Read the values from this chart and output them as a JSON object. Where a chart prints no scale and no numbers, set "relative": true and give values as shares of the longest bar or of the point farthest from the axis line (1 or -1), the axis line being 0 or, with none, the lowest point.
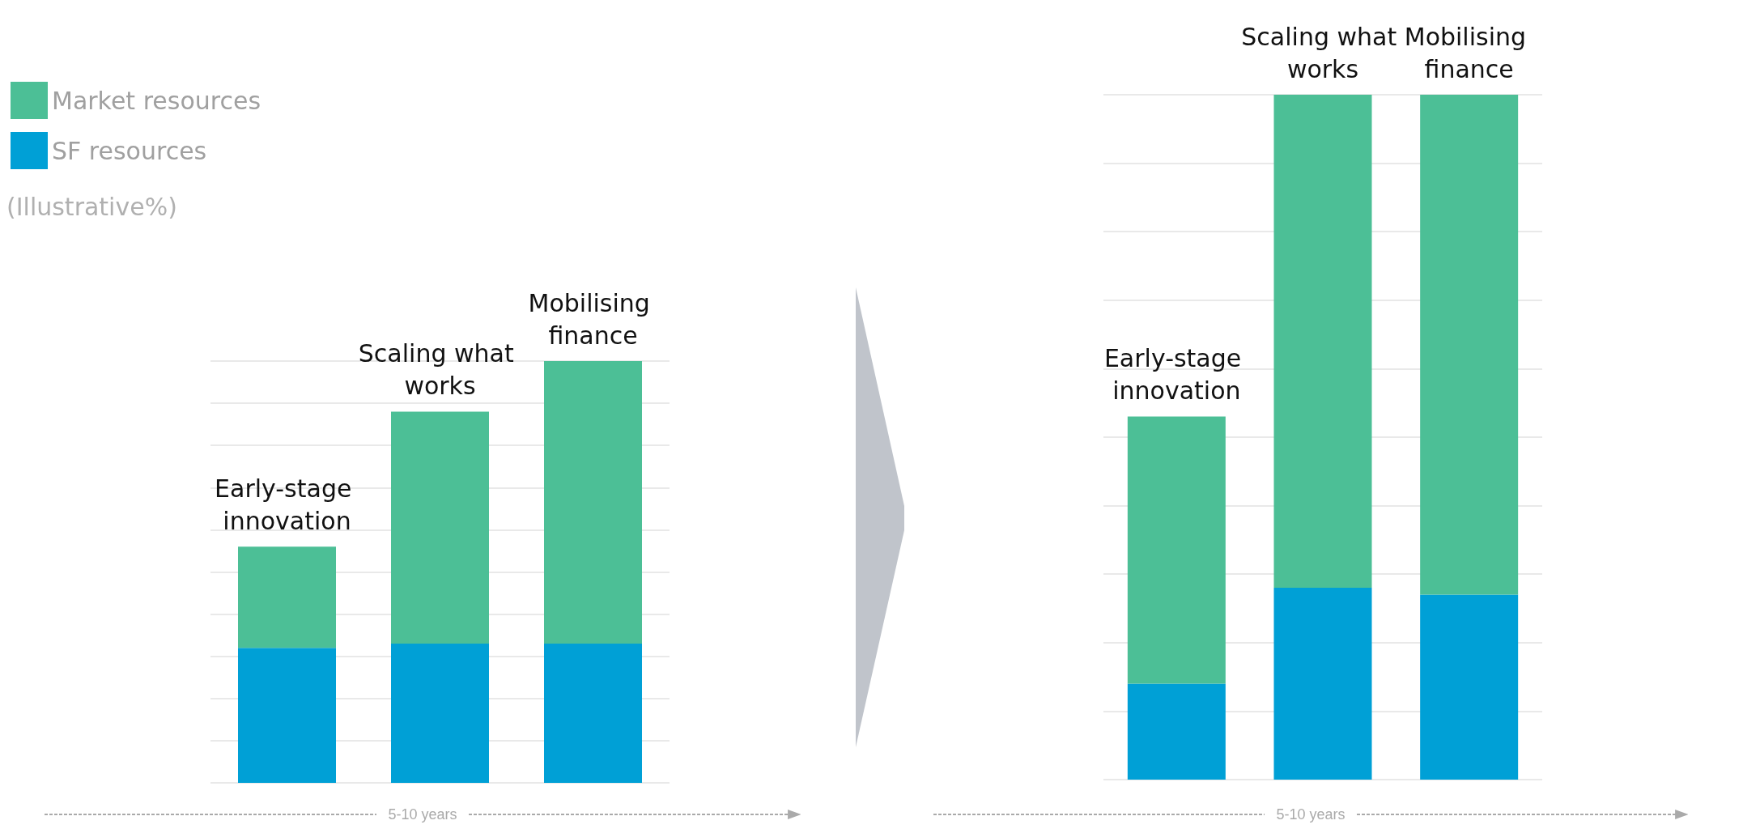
{
  "chart_data": [
    {
      "type": "bar",
      "stacked": true,
      "relative": true,
      "grid": true,
      "legend": "top left",
      "xlabel": "5-10 years",
      "annotations": [
        "(Illustrative%)"
      ],
      "categories": [
        "Early-stage innovation",
        "Scaling what works",
        "Mobilising finance"
      ],
      "series": [
        {
          "name": "SF resources",
          "color": "#00a0d6",
          "values": [
            0.32,
            0.33,
            0.33
          ]
        },
        {
          "name": "Market resources",
          "color": "#4cbf96",
          "values": [
            0.24,
            0.55,
            0.67
          ]
        }
      ]
    },
    {
      "type": "bar",
      "stacked": true,
      "relative": true,
      "grid": true,
      "xlabel": "5-10 years",
      "categories": [
        "Early-stage innovation",
        "Scaling what works",
        "Mobilising finance"
      ],
      "series": [
        {
          "color": "#00a0d6",
          "values": [
            0.14,
            0.28,
            0.27
          ]
        },
        {
          "color": "#4cbf96",
          "values": [
            0.39,
            0.72,
            0.73
          ]
        }
      ]
    }
  ]
}
